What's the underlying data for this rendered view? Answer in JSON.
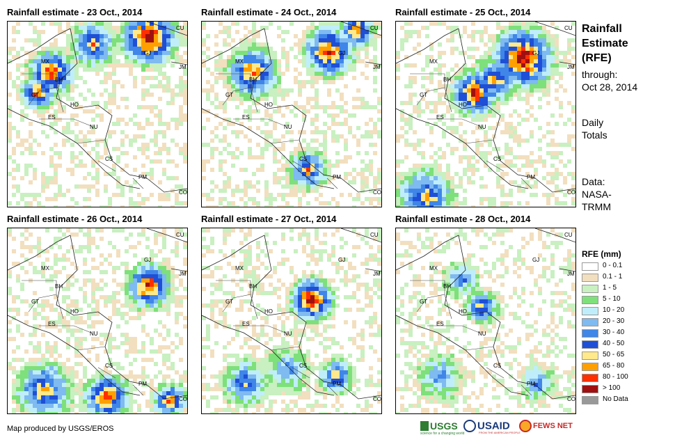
{
  "panels": [
    {
      "title": "Rainfall estimate - 23 Oct., 2014"
    },
    {
      "title": "Rainfall estimate - 24 Oct., 2014"
    },
    {
      "title": "Rainfall estimate - 25 Oct., 2014"
    },
    {
      "title": "Rainfall estimate - 26 Oct., 2014"
    },
    {
      "title": "Rainfall estimate - 27 Oct., 2014"
    },
    {
      "title": "Rainfall estimate - 28 Oct., 2014"
    }
  ],
  "map_labels": [
    "CU",
    "MX",
    "GJ",
    "JM",
    "BH",
    "GT",
    "HO",
    "ES",
    "NU",
    "CS",
    "PM",
    "CO"
  ],
  "side": {
    "title_lines": [
      "Rainfall",
      "Estimate",
      "(RFE)"
    ],
    "through_label": "through:",
    "through_date": "Oct 28, 2014",
    "daily_1": "Daily",
    "daily_2": "Totals",
    "data_1": "Data:",
    "data_2": "NASA-",
    "data_3": "TRMM"
  },
  "legend": {
    "title": "RFE (mm)",
    "items": [
      {
        "label": "0 - 0.1",
        "color": "#ffffff"
      },
      {
        "label": "0.1 - 1",
        "color": "#f2dfbf"
      },
      {
        "label": "1 - 5",
        "color": "#c8f0c0"
      },
      {
        "label": "5 - 10",
        "color": "#7ee07a"
      },
      {
        "label": "10 - 20",
        "color": "#bfeefa"
      },
      {
        "label": "20 - 30",
        "color": "#7fbaf0"
      },
      {
        "label": "30 - 40",
        "color": "#3f86e8"
      },
      {
        "label": "40 - 50",
        "color": "#1f4fd6"
      },
      {
        "label": "50 - 65",
        "color": "#ffe98a"
      },
      {
        "label": "65 - 80",
        "color": "#ffa000"
      },
      {
        "label": "80 - 100",
        "color": "#ff3000"
      },
      {
        "label": "> 100",
        "color": "#a01010"
      },
      {
        "label": "No Data",
        "color": "#999999"
      }
    ]
  },
  "credit": "Map produced by USGS/EROS",
  "logos": {
    "usgs": "USGS",
    "usgs_tag": "science for a changing world",
    "usaid": "USAID",
    "usaid_tag": "FROM THE AMERICAN PEOPLE",
    "fews": "FEWS NET"
  }
}
